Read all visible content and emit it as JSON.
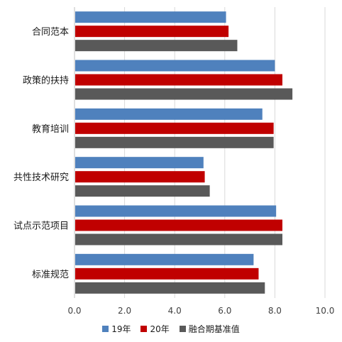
{
  "chart_data": {
    "type": "bar",
    "orientation": "horizontal",
    "categories": [
      "合同范本",
      "政策的扶持",
      "教育培训",
      "共性技术研究",
      "试点示范项目",
      "标准规范"
    ],
    "series": [
      {
        "name": "19年",
        "color": "#4f81bd",
        "values": [
          6.05,
          8.0,
          7.5,
          5.15,
          8.05,
          7.15
        ]
      },
      {
        "name": "20年",
        "color": "#c00000",
        "values": [
          6.15,
          8.3,
          7.95,
          5.2,
          8.3,
          7.35
        ]
      },
      {
        "name": "融合期基准值",
        "color": "#595959",
        "values": [
          6.5,
          8.7,
          7.95,
          5.4,
          8.3,
          7.6
        ]
      }
    ],
    "xlim": [
      0,
      10
    ],
    "xticks": [
      "0.0",
      "2.0",
      "4.0",
      "6.0",
      "8.0",
      "10.0"
    ],
    "grid": true,
    "legend_position": "bottom"
  }
}
